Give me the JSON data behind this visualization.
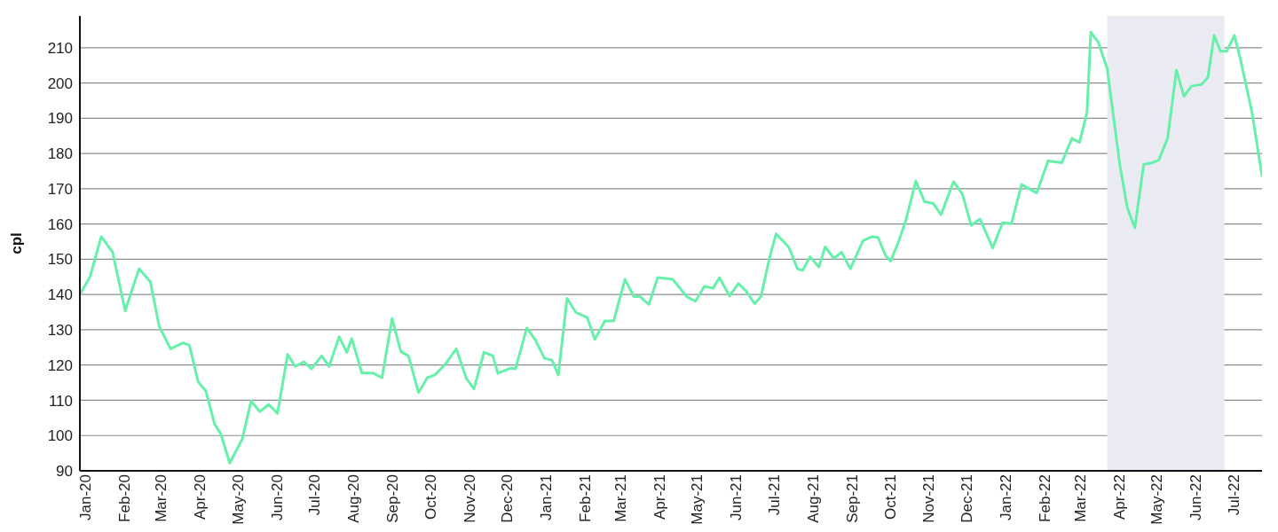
{
  "chart_data": {
    "type": "line",
    "ylabel": "cpl",
    "grid": "y",
    "marker": "none",
    "line_style": "solid",
    "xlim": [
      "2020-01-01",
      "2022-07-28"
    ],
    "ylim": [
      90,
      219
    ],
    "yticks": [
      90,
      100,
      110,
      120,
      130,
      140,
      150,
      160,
      170,
      180,
      190,
      200,
      210
    ],
    "xticks": [
      {
        "value": "2020-01-01",
        "label": "Jan-20"
      },
      {
        "value": "2020-02-01",
        "label": "Feb-20"
      },
      {
        "value": "2020-03-01",
        "label": "Mar-20"
      },
      {
        "value": "2020-04-01",
        "label": "Apr-20"
      },
      {
        "value": "2020-05-01",
        "label": "May-20"
      },
      {
        "value": "2020-06-01",
        "label": "Jun-20"
      },
      {
        "value": "2020-07-01",
        "label": "Jul-20"
      },
      {
        "value": "2020-08-01",
        "label": "Aug-20"
      },
      {
        "value": "2020-09-01",
        "label": "Sep-20"
      },
      {
        "value": "2020-10-01",
        "label": "Oct-20"
      },
      {
        "value": "2020-11-01",
        "label": "Nov-20"
      },
      {
        "value": "2020-12-01",
        "label": "Dec-20"
      },
      {
        "value": "2021-01-01",
        "label": "Jan-21"
      },
      {
        "value": "2021-02-01",
        "label": "Feb-21"
      },
      {
        "value": "2021-03-01",
        "label": "Mar-21"
      },
      {
        "value": "2021-04-01",
        "label": "Apr-21"
      },
      {
        "value": "2021-05-01",
        "label": "May-21"
      },
      {
        "value": "2021-06-01",
        "label": "Jun-21"
      },
      {
        "value": "2021-07-01",
        "label": "Jul-21"
      },
      {
        "value": "2021-08-01",
        "label": "Aug-21"
      },
      {
        "value": "2021-09-01",
        "label": "Sep-21"
      },
      {
        "value": "2021-10-01",
        "label": "Oct-21"
      },
      {
        "value": "2021-11-01",
        "label": "Nov-21"
      },
      {
        "value": "2021-12-01",
        "label": "Dec-21"
      },
      {
        "value": "2022-01-01",
        "label": "Jan-22"
      },
      {
        "value": "2022-02-01",
        "label": "Feb-22"
      },
      {
        "value": "2022-03-01",
        "label": "Mar-22"
      },
      {
        "value": "2022-04-01",
        "label": "Apr-22"
      },
      {
        "value": "2022-05-01",
        "label": "May-22"
      },
      {
        "value": "2022-06-01",
        "label": "Jun-22"
      },
      {
        "value": "2022-07-01",
        "label": "Jul-22"
      }
    ],
    "bands": [
      {
        "axis": "x",
        "from": "2022-03-27",
        "to": "2022-06-28",
        "color": "#ebebf3"
      }
    ],
    "x": [
      "2020-01-01",
      "2020-01-09",
      "2020-01-18",
      "2020-01-27",
      "2020-02-06",
      "2020-02-17",
      "2020-02-26",
      "2020-03-04",
      "2020-03-13",
      "2020-03-23",
      "2020-03-28",
      "2020-04-04",
      "2020-04-10",
      "2020-04-17",
      "2020-04-22",
      "2020-04-29",
      "2020-05-09",
      "2020-05-16",
      "2020-05-23",
      "2020-05-30",
      "2020-06-06",
      "2020-06-14",
      "2020-06-20",
      "2020-06-27",
      "2020-07-03",
      "2020-07-11",
      "2020-07-17",
      "2020-07-25",
      "2020-07-31",
      "2020-08-04",
      "2020-08-12",
      "2020-08-21",
      "2020-08-28",
      "2020-09-05",
      "2020-09-12",
      "2020-09-18",
      "2020-09-26",
      "2020-10-03",
      "2020-10-09",
      "2020-10-17",
      "2020-10-26",
      "2020-11-03",
      "2020-11-09",
      "2020-11-17",
      "2020-11-24",
      "2020-11-28",
      "2020-12-08",
      "2020-12-12",
      "2020-12-21",
      "2020-12-28",
      "2021-01-04",
      "2021-01-10",
      "2021-01-15",
      "2021-01-22",
      "2021-01-29",
      "2021-02-07",
      "2021-02-13",
      "2021-02-21",
      "2021-02-28",
      "2021-03-09",
      "2021-03-16",
      "2021-03-21",
      "2021-03-28",
      "2021-04-04",
      "2021-04-16",
      "2021-04-27",
      "2021-05-04",
      "2021-05-11",
      "2021-05-18",
      "2021-05-23",
      "2021-05-31",
      "2021-06-07",
      "2021-06-13",
      "2021-06-20",
      "2021-06-25",
      "2021-07-02",
      "2021-07-07",
      "2021-07-17",
      "2021-07-24",
      "2021-07-28",
      "2021-08-03",
      "2021-08-10",
      "2021-08-15",
      "2021-08-22",
      "2021-08-28",
      "2021-09-04",
      "2021-09-14",
      "2021-09-21",
      "2021-09-26",
      "2021-10-02",
      "2021-10-06",
      "2021-10-12",
      "2021-10-18",
      "2021-10-26",
      "2021-11-02",
      "2021-11-09",
      "2021-11-15",
      "2021-11-25",
      "2021-12-02",
      "2021-12-09",
      "2021-12-16",
      "2021-12-26",
      "2022-01-03",
      "2022-01-10",
      "2022-01-18",
      "2022-01-30",
      "2022-02-08",
      "2022-02-19",
      "2022-02-27",
      "2022-03-05",
      "2022-03-11",
      "2022-03-14",
      "2022-03-20",
      "2022-03-27",
      "2022-04-06",
      "2022-04-12",
      "2022-04-18",
      "2022-04-25",
      "2022-05-02",
      "2022-05-07",
      "2022-05-14",
      "2022-05-21",
      "2022-05-27",
      "2022-06-02",
      "2022-06-10",
      "2022-06-15",
      "2022-06-20",
      "2022-06-25",
      "2022-06-30",
      "2022-07-06",
      "2022-07-11",
      "2022-07-20",
      "2022-07-28"
    ],
    "series": [
      {
        "color": "#66f0aa",
        "values": [
          140,
          145,
          156.4,
          152,
          135.4,
          147.3,
          143.6,
          131,
          124.6,
          126.3,
          125.6,
          115.2,
          112.7,
          103.3,
          100.4,
          92.2,
          99,
          109.8,
          106.8,
          108.8,
          106.3,
          123,
          119.6,
          120.9,
          118.9,
          122.6,
          119.6,
          128,
          123.6,
          127.5,
          117.7,
          117.7,
          116.4,
          133.2,
          123.8,
          122.6,
          112.2,
          116.4,
          117.2,
          120.1,
          124.6,
          116.2,
          113.2,
          123.6,
          122.6,
          117.7,
          119.1,
          118.9,
          130.5,
          127,
          121.9,
          121.4,
          117.2,
          138.9,
          134.9,
          133.5,
          127.3,
          132.5,
          132.5,
          144.3,
          139.4,
          139.4,
          137.2,
          144.8,
          144.3,
          139.4,
          138.1,
          142.3,
          141.8,
          144.8,
          139.6,
          143.1,
          141.1,
          137.4,
          139.4,
          150.7,
          157.2,
          153.5,
          147.3,
          146.8,
          150.7,
          147.8,
          153.5,
          150.2,
          152,
          147.3,
          155.2,
          156.4,
          156.2,
          151,
          149.5,
          154.7,
          160.9,
          172.2,
          166.3,
          165.8,
          162.6,
          172,
          168.5,
          159.6,
          161.4,
          153.2,
          160.4,
          160.1,
          171.2,
          168.8,
          177.9,
          177.4,
          184.3,
          183.1,
          191.7,
          214.4,
          211.5,
          204.1,
          176.9,
          164.6,
          158.9,
          176.9,
          177.4,
          178.1,
          184.3,
          203.6,
          196.2,
          199.1,
          199.6,
          201.6,
          213.5,
          209,
          209,
          213.5,
          206.5,
          191.7,
          173.7
        ]
      }
    ]
  }
}
